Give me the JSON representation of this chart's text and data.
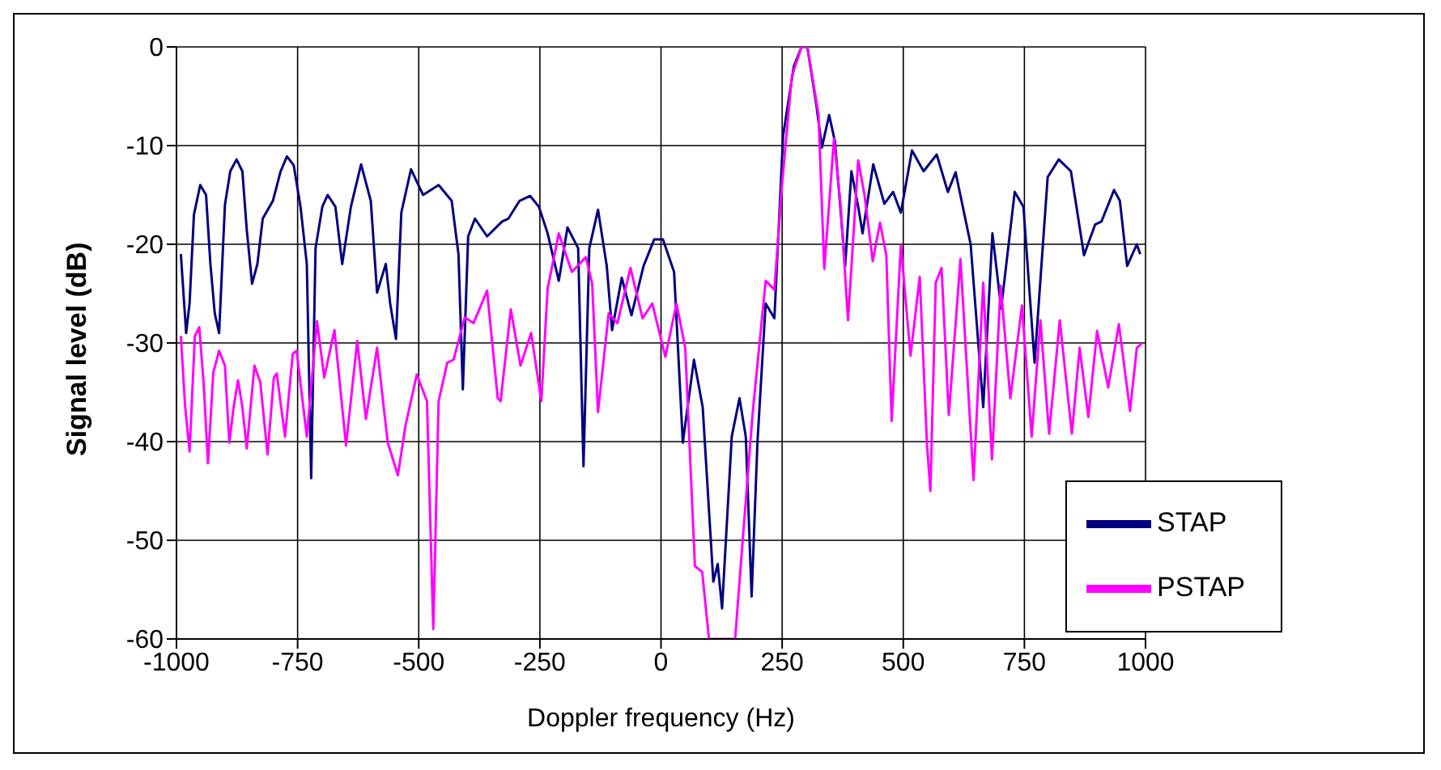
{
  "chart_data": {
    "type": "line",
    "xlabel": "Doppler frequency (Hz)",
    "ylabel": "Signal level (dB)",
    "xlim": [
      -1000,
      1000
    ],
    "xticks": [
      -1000,
      -750,
      -500,
      -250,
      0,
      250,
      500,
      750,
      1000
    ],
    "ylim": [
      -60,
      0
    ],
    "yticks": [
      -60,
      -50,
      -40,
      -30,
      -20,
      -10,
      0
    ],
    "grid": true,
    "legend": "bottom right",
    "marker": "none",
    "line_style": "solid",
    "series": [
      {
        "name": "STAP",
        "color": "#000080",
        "x": [
          -991,
          -980,
          -973,
          -964,
          -951,
          -939,
          -930,
          -921,
          -912,
          -900,
          -889,
          -876,
          -864,
          -855,
          -844,
          -833,
          -822,
          -801,
          -785,
          -772,
          -758,
          -744,
          -731,
          -722,
          -713,
          -699,
          -688,
          -672,
          -658,
          -640,
          -619,
          -599,
          -586,
          -568,
          -559,
          -547,
          -536,
          -516,
          -491,
          -459,
          -432,
          -418,
          -409,
          -398,
          -384,
          -359,
          -328,
          -315,
          -292,
          -270,
          -252,
          -234,
          -211,
          -193,
          -171,
          -160,
          -148,
          -130,
          -112,
          -101,
          -81,
          -61,
          -36,
          -14,
          4,
          27,
          45,
          68,
          86,
          108,
          117,
          126,
          146,
          162,
          175,
          187,
          199,
          216,
          234,
          252,
          274,
          290,
          302,
          321,
          332,
          347,
          359,
          380,
          393,
          407,
          416,
          438,
          461,
          479,
          495,
          518,
          542,
          569,
          592,
          608,
          639,
          665,
          684,
          702,
          730,
          748,
          771,
          798,
          821,
          846,
          873,
          896,
          909,
          935,
          947,
          962,
          982,
          989
        ],
        "values": [
          -21,
          -29,
          -26,
          -17,
          -14,
          -15,
          -22,
          -27,
          -29,
          -16,
          -12.6,
          -11.4,
          -12.6,
          -18.5,
          -24,
          -22,
          -17.4,
          -15.6,
          -12.6,
          -11.1,
          -12,
          -16.2,
          -22,
          -43.7,
          -20.4,
          -16.2,
          -15,
          -16.2,
          -22,
          -16.2,
          -11.9,
          -15.6,
          -24.9,
          -22,
          -26,
          -29.6,
          -16.8,
          -12.4,
          -15,
          -14,
          -15.6,
          -21,
          -34.7,
          -19.2,
          -17.4,
          -19.2,
          -17.7,
          -17.4,
          -15.6,
          -15.1,
          -16.2,
          -18.9,
          -23.7,
          -18.3,
          -20.4,
          -42.5,
          -20.4,
          -16.5,
          -22.2,
          -28.7,
          -23.4,
          -27.2,
          -22.2,
          -19.5,
          -19.5,
          -22.8,
          -40.1,
          -31.7,
          -36.5,
          -54.2,
          -52.4,
          -56.9,
          -39.5,
          -35.6,
          -39.5,
          -55.7,
          -40.1,
          -26,
          -27.5,
          -9,
          -2,
          0,
          0,
          -6,
          -10.2,
          -6.9,
          -9.6,
          -22.2,
          -12.6,
          -16.2,
          -18.9,
          -11.9,
          -15.9,
          -14.7,
          -16.8,
          -10.5,
          -12.6,
          -10.9,
          -14.7,
          -12.7,
          -20,
          -36.5,
          -18.9,
          -26.5,
          -14.7,
          -16.2,
          -32,
          -13.2,
          -11.4,
          -12.6,
          -21.1,
          -18,
          -17.7,
          -14.5,
          -15.6,
          -22.2,
          -20,
          -21
        ]
      },
      {
        "name": "PSTAP",
        "color": "#ff00ff",
        "x": [
          -991,
          -982,
          -973,
          -962,
          -953,
          -944,
          -935,
          -924,
          -912,
          -900,
          -891,
          -882,
          -873,
          -864,
          -855,
          -839,
          -827,
          -812,
          -799,
          -793,
          -776,
          -760,
          -752,
          -731,
          -710,
          -695,
          -674,
          -650,
          -627,
          -609,
          -586,
          -564,
          -543,
          -527,
          -504,
          -483,
          -470,
          -459,
          -441,
          -428,
          -405,
          -387,
          -359,
          -337,
          -331,
          -310,
          -290,
          -268,
          -247,
          -234,
          -211,
          -184,
          -155,
          -142,
          -130,
          -108,
          -90,
          -63,
          -38,
          -18,
          9,
          32,
          50,
          70,
          85,
          99,
          153,
          167,
          189,
          216,
          234,
          250,
          270,
          290,
          302,
          325,
          337,
          357,
          371,
          386,
          407,
          420,
          437,
          452,
          465,
          476,
          495,
          515,
          534,
          549,
          556,
          567,
          579,
          594,
          618,
          645,
          665,
          683,
          701,
          721,
          745,
          765,
          783,
          801,
          823,
          848,
          864,
          882,
          900,
          923,
          945,
          968,
          982,
          993
        ],
        "values": [
          -29.3,
          -36.5,
          -41,
          -29.3,
          -28.4,
          -34,
          -42.2,
          -33,
          -30.8,
          -32.3,
          -40.1,
          -36.5,
          -33.8,
          -36.5,
          -40.7,
          -32.3,
          -34,
          -41.3,
          -33.5,
          -33.1,
          -39.5,
          -31.1,
          -30.8,
          -39.5,
          -27.8,
          -33.5,
          -28.7,
          -40.4,
          -29.8,
          -37.7,
          -30.5,
          -40.1,
          -43.4,
          -38.3,
          -33.2,
          -35.9,
          -59,
          -35.9,
          -32,
          -31.7,
          -27.4,
          -28,
          -24.7,
          -35.6,
          -35.9,
          -26.6,
          -32.3,
          -29,
          -35.9,
          -24.5,
          -18.9,
          -22.8,
          -21.3,
          -24,
          -37,
          -27,
          -28,
          -22.4,
          -27.5,
          -26,
          -31.4,
          -26,
          -30.5,
          -52.6,
          -53.2,
          -60,
          -60,
          -51,
          -37.2,
          -23.7,
          -24.6,
          -13.8,
          -3,
          0,
          0,
          -6.8,
          -22.5,
          -9.3,
          -16.2,
          -27.7,
          -11.5,
          -15,
          -21.7,
          -17.8,
          -21.1,
          -37.9,
          -20.1,
          -31.3,
          -23.3,
          -40.3,
          -45,
          -23.9,
          -22.4,
          -37.3,
          -21.5,
          -43.9,
          -23.9,
          -41.8,
          -24.2,
          -35.6,
          -26.2,
          -39.5,
          -27.7,
          -39.2,
          -27.7,
          -39.2,
          -30.5,
          -37.5,
          -28.8,
          -34.5,
          -28.1,
          -36.9,
          -30.5,
          -30
        ]
      }
    ]
  }
}
